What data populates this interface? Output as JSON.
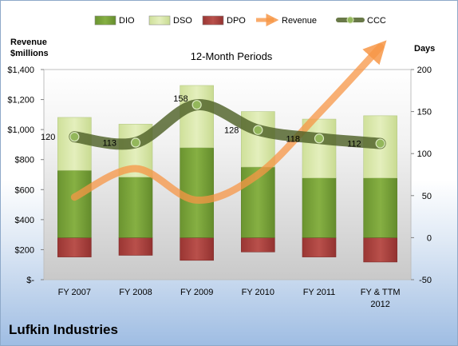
{
  "chart_data": {
    "type": "bar",
    "title": "12-Month Periods",
    "categories": [
      "FY 2007",
      "FY 2008",
      "FY 2009",
      "FY 2010",
      "FY 2011",
      "FY & TTM 2012"
    ],
    "left_axis": {
      "label_line1": "Revenue",
      "label_line2": "$millions",
      "ylim": [
        0,
        1400
      ],
      "ticks": [
        {
          "value": 0,
          "label": "$-"
        },
        {
          "value": 200,
          "label": "$200"
        },
        {
          "value": 400,
          "label": "$400"
        },
        {
          "value": 600,
          "label": "$600"
        },
        {
          "value": 800,
          "label": "$800"
        },
        {
          "value": 1000,
          "label": "$1,000"
        },
        {
          "value": 1200,
          "label": "$1,200"
        },
        {
          "value": 1400,
          "label": "$1,400"
        }
      ]
    },
    "right_axis": {
      "label": "Days",
      "ylim": [
        -50,
        200
      ],
      "ticks": [
        {
          "value": -50,
          "label": "-50"
        },
        {
          "value": 0,
          "label": "0"
        },
        {
          "value": 50,
          "label": "50"
        },
        {
          "value": 100,
          "label": "100"
        },
        {
          "value": 150,
          "label": "150"
        },
        {
          "value": 200,
          "label": "200"
        }
      ]
    },
    "series": [
      {
        "name": "DIO",
        "axis": "right",
        "kind": "bar",
        "color": "#77a33a",
        "values": [
          80,
          72,
          107,
          84,
          71,
          71
        ]
      },
      {
        "name": "DSO",
        "axis": "right",
        "kind": "bar",
        "color": "#d6e5a5",
        "values": [
          63,
          63,
          74,
          66,
          70,
          74
        ]
      },
      {
        "name": "DPO",
        "axis": "right",
        "kind": "bar",
        "color": "#a8413e",
        "values": [
          -23,
          -21,
          -27,
          -17,
          -23,
          -29
        ]
      },
      {
        "name": "Revenue",
        "axis": "left",
        "kind": "line",
        "color": "#f79646",
        "values": [
          550,
          740,
          530,
          700,
          1110,
          1550
        ]
      },
      {
        "name": "CCC",
        "axis": "right",
        "kind": "line",
        "color": "#4f6228",
        "values": [
          120,
          113,
          158,
          128,
          118,
          112
        ]
      }
    ],
    "ccc_labels": [
      "120",
      "113",
      "158",
      "128",
      "118",
      "112"
    ],
    "legend_placement": "top",
    "grid": false
  },
  "footer": {
    "company": "Lufkin Industries"
  }
}
